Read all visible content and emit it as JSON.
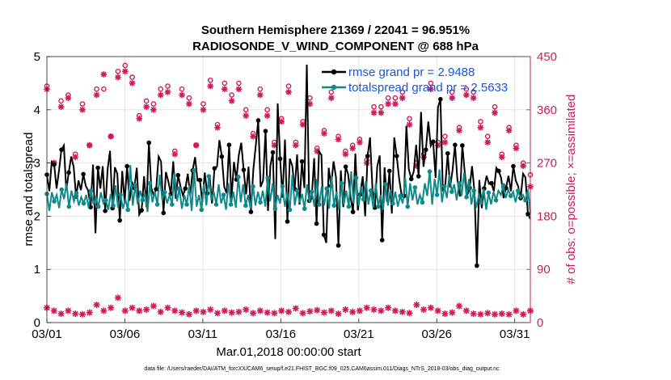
{
  "chart_data": {
    "type": "line",
    "title": "Southern Hemisphere 21369 / 22041 = 96.951%",
    "subtitle": "RADIOSONDE_V_WIND_COMPONENT @ 688 hPa",
    "xlabel": "Mar.01,2018 00:00:00 start",
    "ylabel_left": "rmse and totalspread",
    "ylabel_right": "# of obs: o=possible; ×=assimilated",
    "x_ticks": [
      "03/01",
      "03/06",
      "03/11",
      "03/16",
      "03/21",
      "03/26",
      "03/31"
    ],
    "x_range": [
      1,
      32
    ],
    "ylim_left": [
      0,
      5
    ],
    "y_ticks_left": [
      "0",
      "1",
      "2",
      "3",
      "4",
      "5"
    ],
    "ylim_right": [
      0,
      450
    ],
    "y_ticks_right": [
      "0",
      "90",
      "180",
      "270",
      "360",
      "450"
    ],
    "grid": true,
    "legend_position": "top-right",
    "colors": {
      "rmse": "#000000",
      "spread": "#0e8a8a",
      "obs": "#d01a5a",
      "legend_text": "#1a56d8"
    },
    "series": [
      {
        "name": "rmse",
        "legend": "rmse grand pr = 2.9488",
        "values": [
          2.78,
          2.47,
          3.02,
          2.97,
          2.52,
          2.86,
          3.25,
          3.33,
          2.48,
          2.82,
          3.12,
          2.93,
          2.37,
          2.67,
          2.49,
          2.79,
          2.57,
          2.48,
          2.17,
          2.97,
          1.68,
          2.91,
          2.52,
          2.94,
          2.1,
          2.88,
          3.23,
          2.15,
          2.92,
          2.8,
          1.92,
          2.85,
          2.27,
          2.94,
          2.29,
          2.65,
          2.53,
          2.91,
          2.03,
          2.11,
          2.75,
          2.17,
          3.38,
          2.53,
          2.39,
          2.51,
          3.12,
          3.03,
          2.06,
          2.83,
          2.65,
          2.42,
          3.03,
          2.33,
          2.77,
          2.56,
          2.39,
          2.52,
          2.8,
          2.39,
          2.86,
          3.11,
          2.67,
          2.68,
          2.26,
          2.82,
          2.43,
          2.75,
          2.24,
          2.9,
          2.93,
          3.43,
          3.12,
          2.55,
          2.43,
          3.34,
          2.34,
          3.02,
          2.69,
          3.15,
          3.38,
          2.87,
          2.41,
          2.93,
          2.08,
          2.88,
          3.33,
          3.8,
          2.55,
          2.67,
          3.6,
          2.1,
          2.95,
          3.2,
          1.57,
          4.12,
          3.08,
          2.35,
          3.44,
          1.9,
          3.08,
          2.95,
          2.51,
          3.16,
          2.22,
          3.03,
          2.53,
          4.85,
          2.29,
          2.33,
          3.09,
          1.86,
          3.22,
          3.15,
          1.65,
          1.5,
          2.91,
          2.57,
          3.03,
          2.73,
          1.45,
          2.86,
          2.17,
          2.93,
          2.79,
          2.37,
          2.08,
          3.18,
          2.11,
          2.41,
          2.75,
          2.0,
          3.13,
          3.48,
          2.52,
          2.16,
          2.94,
          3.14,
          1.55,
          2.92,
          2.27,
          2.85,
          2.05,
          3.48,
          3.13,
          2.71,
          2.4,
          2.38,
          3.7,
          2.88,
          2.7,
          2.84,
          3.34,
          2.75,
          3.96,
          2.93,
          3.25,
          3.78,
          3.32,
          3.4,
          2.72,
          4.05,
          4.2,
          2.47,
          2.58,
          3.18,
          2.54,
          2.87,
          3.34,
          2.68,
          2.37,
          3.33,
          2.82,
          2.39,
          2.53,
          2.94,
          2.46,
          1.07,
          2.68,
          2.15,
          2.52,
          2.76,
          2.61,
          2.62,
          2.47,
          2.91,
          2.85,
          2.72,
          2.34,
          2.53,
          2.76,
          2.47,
          2.94,
          2.67,
          2.56,
          2.34,
          2.8,
          2.73,
          2.04,
          1.95
        ]
      },
      {
        "name": "totalspread",
        "legend": "totalspread grand pr = 2.5633",
        "values": [
          2.42,
          2.1,
          2.45,
          2.28,
          2.4,
          2.15,
          2.5,
          2.32,
          2.62,
          2.18,
          2.48,
          2.28,
          2.43,
          2.2,
          2.36,
          2.24,
          2.4,
          2.16,
          2.48,
          2.22,
          2.36,
          2.18,
          2.45,
          2.24,
          2.3,
          2.12,
          2.42,
          2.2,
          2.58,
          2.16,
          2.4,
          2.14,
          2.32,
          2.12,
          2.96,
          2.2,
          2.58,
          2.22,
          2.48,
          2.3,
          2.44,
          2.08,
          2.62,
          2.26,
          2.46,
          2.22,
          2.78,
          2.3,
          2.45,
          2.24,
          2.4,
          2.22,
          2.82,
          2.28,
          2.52,
          2.14,
          2.4,
          2.22,
          2.58,
          2.1,
          2.86,
          2.18,
          2.4,
          2.12,
          2.6,
          2.2,
          2.75,
          2.3,
          2.46,
          2.22,
          2.6,
          2.24,
          2.4,
          2.12,
          2.62,
          2.22,
          2.46,
          2.16,
          2.74,
          2.26,
          2.6,
          2.2,
          2.4,
          2.14,
          2.56,
          2.2,
          2.46,
          2.26,
          2.48,
          2.18,
          2.72,
          2.28,
          2.62,
          2.14,
          2.4,
          2.24,
          2.56,
          2.18,
          2.46,
          2.12,
          2.78,
          2.2,
          2.48,
          2.26,
          2.42,
          2.14,
          2.6,
          2.26,
          2.46,
          2.18,
          2.7,
          2.22,
          2.56,
          2.2,
          2.52,
          2.14,
          2.76,
          2.2,
          2.46,
          2.12,
          2.62,
          2.22,
          2.48,
          2.18,
          2.84,
          2.24,
          2.72,
          2.2,
          2.56,
          2.32,
          2.66,
          2.22,
          2.48,
          2.16,
          2.62,
          2.18,
          2.4,
          2.12,
          2.6,
          2.2,
          2.5,
          2.24,
          2.46,
          2.18,
          2.38,
          2.24,
          2.72,
          2.18,
          2.62,
          2.3,
          2.54,
          2.22,
          2.4,
          2.26,
          2.62,
          2.38,
          2.84,
          2.22,
          2.7,
          2.4,
          2.88,
          2.26,
          2.56,
          2.34,
          2.78,
          2.46,
          2.6,
          2.3,
          2.62,
          2.38,
          2.82,
          2.36,
          2.7,
          2.22,
          2.48,
          2.16,
          2.4,
          2.26,
          2.52,
          2.12,
          2.44,
          2.22,
          2.46,
          2.3,
          2.48,
          2.4,
          2.58,
          2.34,
          2.5,
          2.38,
          2.46,
          2.26,
          2.48,
          2.34,
          2.4,
          2.3,
          2.5,
          2.06
        ]
      }
    ],
    "obs_possible": [
      400,
      270,
      375,
      385,
      285,
      370,
      300,
      395,
      395,
      315,
      425,
      435,
      415,
      350,
      375,
      370,
      395,
      400,
      290,
      395,
      380,
      300,
      370,
      410,
      335,
      405,
      385,
      405,
      360,
      320,
      395,
      360,
      305,
      345,
      400,
      305,
      340,
      380,
      295,
      325,
      390,
      315,
      290,
      300,
      310,
      275,
      365,
      365,
      380,
      380,
      390,
      345,
      270,
      285,
      405,
      305,
      315,
      390,
      330,
      395,
      390,
      340,
      315,
      365,
      285,
      330,
      300,
      270,
      250
    ],
    "obs_assimilated": [
      395,
      270,
      365,
      380,
      280,
      360,
      300,
      385,
      420,
      315,
      415,
      425,
      405,
      345,
      365,
      360,
      385,
      390,
      285,
      385,
      370,
      300,
      360,
      400,
      330,
      395,
      375,
      395,
      350,
      315,
      385,
      350,
      300,
      340,
      390,
      300,
      335,
      370,
      290,
      320,
      380,
      310,
      285,
      295,
      305,
      270,
      355,
      355,
      370,
      370,
      380,
      335,
      265,
      280,
      395,
      300,
      305,
      380,
      325,
      385,
      380,
      330,
      305,
      355,
      280,
      325,
      295,
      265,
      230
    ],
    "obs_low": [
      25,
      20,
      15,
      20,
      15,
      14,
      17,
      30,
      20,
      25,
      42,
      20,
      25,
      20,
      22,
      28,
      18,
      25,
      20,
      17,
      14,
      20,
      18,
      22,
      16,
      20,
      17,
      18,
      22,
      16,
      20,
      17,
      16,
      20,
      18,
      24,
      16,
      19,
      21,
      17,
      20,
      15,
      22,
      18,
      20,
      25,
      22,
      20,
      25,
      20,
      18,
      16,
      30,
      22,
      25,
      20,
      15,
      17,
      28,
      20,
      15,
      14,
      16,
      14,
      15,
      14,
      20,
      14,
      20
    ],
    "footer": "data file: /Users/raeder/DAI/ATM_forcXX/CAM6_setup/f.e21.FHIST_BGC.f09_025.CAM6assim.011/Diags_NTrS_2018-03/obs_diag_output.nc"
  }
}
